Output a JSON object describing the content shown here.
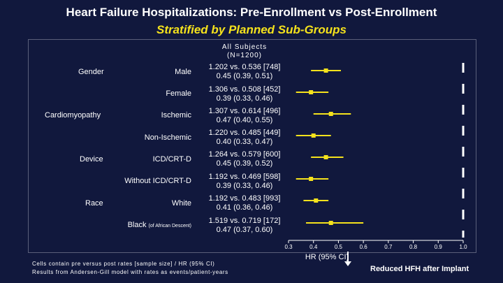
{
  "title": "Heart Failure Hospitalizations: Pre-Enrollment vs Post-Enrollment",
  "subtitle": "Stratified by Planned Sub-Groups",
  "column_header": {
    "line1": "All Subjects",
    "line2": "(N=1200)"
  },
  "categories": {
    "gender": "Gender",
    "cardiomyopathy": "Cardiomyopathy",
    "device": "Device",
    "race": "Race"
  },
  "rows": [
    {
      "label": "Male",
      "stat_line1": "1.202 vs. 0.536 [748]",
      "stat_line2": "0.45 (0.39, 0.51)"
    },
    {
      "label": "Female",
      "stat_line1": "1.306 vs. 0.508 [452]",
      "stat_line2": "0.39 (0.33, 0.46)"
    },
    {
      "label": "Ischemic",
      "stat_line1": "1.307 vs. 0.614 [496]",
      "stat_line2": "0.47 (0.40, 0.55)"
    },
    {
      "label": "Non-Ischemic",
      "stat_line1": "1.220 vs. 0.485 [449]",
      "stat_line2": "0.40 (0.33, 0.47)"
    },
    {
      "label": "ICD/CRT-D",
      "stat_line1": "1.264 vs. 0.579 [600]",
      "stat_line2": "0.45 (0.39, 0.52)"
    },
    {
      "label": "Without ICD/CRT-D",
      "stat_line1": "1.192 vs. 0.469 [598]",
      "stat_line2": "0.39 (0.33, 0.46)"
    },
    {
      "label": "White",
      "stat_line1": "1.192 vs. 0.483 [993]",
      "stat_line2": "0.41 (0.36, 0.46)"
    },
    {
      "label": "Black",
      "label_note": "(of African Descent)",
      "stat_line1": "1.519 vs. 0.719 [172]",
      "stat_line2": "0.47 (0.37, 0.60)"
    }
  ],
  "footnote": {
    "line1": "Cells contain pre versus post rates [sample size] / HR (95% CI)",
    "line2": "Results from Andersen-Gill model with rates as events/patient-years"
  },
  "direction_label": "Reduced HFH after Implant",
  "chart_data": {
    "type": "forest",
    "xlabel": "HR (95% CI)",
    "xlim": [
      0.3,
      1.0
    ],
    "xticks": [
      "0.3",
      "0.4",
      "0.5",
      "0.6",
      "0.7",
      "0.8",
      "0.9",
      "1.0"
    ],
    "reference_line": 1.0,
    "point_color": "#f5e21c",
    "ci_color": "#f5e21c",
    "series": [
      {
        "name": "Male",
        "hr": 0.45,
        "lo": 0.39,
        "hi": 0.51
      },
      {
        "name": "Female",
        "hr": 0.39,
        "lo": 0.33,
        "hi": 0.46
      },
      {
        "name": "Ischemic",
        "hr": 0.47,
        "lo": 0.4,
        "hi": 0.55
      },
      {
        "name": "Non-Ischemic",
        "hr": 0.4,
        "lo": 0.33,
        "hi": 0.47
      },
      {
        "name": "ICD/CRT-D",
        "hr": 0.45,
        "lo": 0.39,
        "hi": 0.52
      },
      {
        "name": "Without ICD/CRT-D",
        "hr": 0.39,
        "lo": 0.33,
        "hi": 0.46
      },
      {
        "name": "White",
        "hr": 0.41,
        "lo": 0.36,
        "hi": 0.46
      },
      {
        "name": "Black (of African Descent)",
        "hr": 0.47,
        "lo": 0.37,
        "hi": 0.6
      }
    ]
  }
}
